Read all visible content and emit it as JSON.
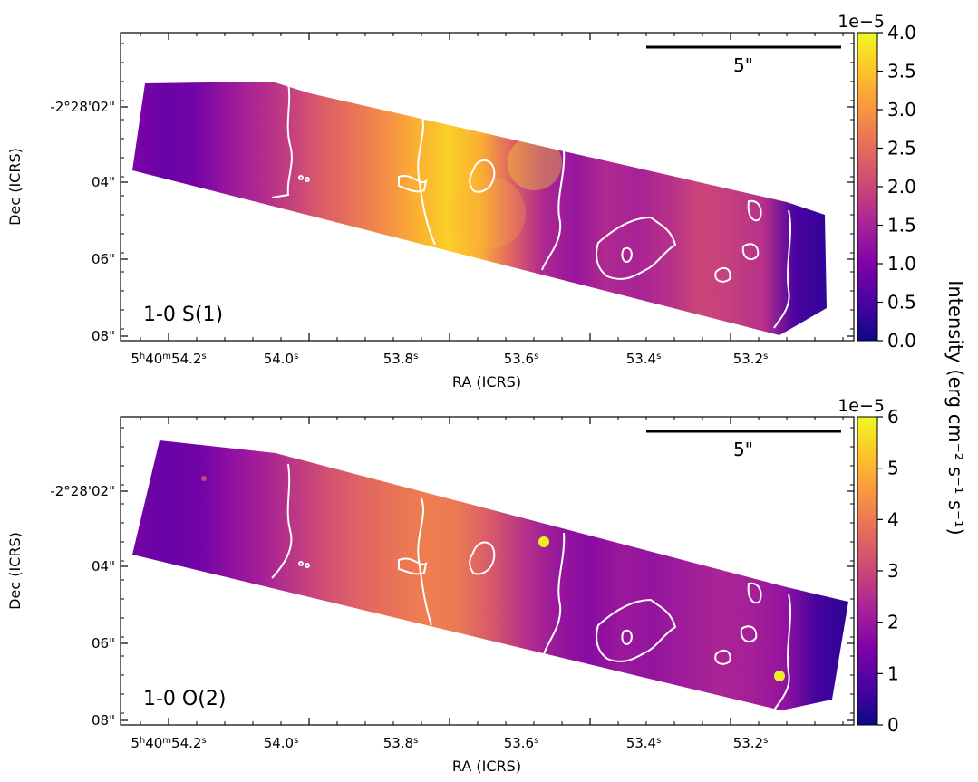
{
  "figure": {
    "colorbar_label": "Intensity (erg cm⁻² s⁻¹ s⁻¹)"
  },
  "chart_data": [
    {
      "type": "heatmap",
      "panel": "top",
      "label": "1-0 S(1)",
      "xlabel": "RA (ICRS)",
      "ylabel": "Dec (ICRS)",
      "x_ticks": [
        "5h40m54.2s",
        "54.0s",
        "53.8s",
        "53.6s",
        "53.4s",
        "53.2s"
      ],
      "y_ticks": [
        "-2°28'02\"",
        "04\"",
        "06\"",
        "08\""
      ],
      "scalebar_label": "5\"",
      "colorbar": {
        "min": 0.0,
        "max": 4.0,
        "ticks": [
          "0.0",
          "0.5",
          "1.0",
          "1.5",
          "2.0",
          "2.5",
          "3.0",
          "3.5",
          "4.0"
        ],
        "offset_text": "1e−5",
        "colormap": "plasma"
      },
      "intensity_profile": [
        1.0,
        0.8,
        0.9,
        1.3,
        1.6,
        1.9,
        2.3,
        2.6,
        2.9,
        3.3,
        3.6,
        3.3,
        2.4,
        1.6,
        1.3,
        1.6,
        1.5,
        1.7,
        2.0,
        1.9,
        1.7,
        0.5,
        0.3
      ]
    },
    {
      "type": "heatmap",
      "panel": "bottom",
      "label": "1-0 O(2)",
      "xlabel": "RA (ICRS)",
      "ylabel": "Dec (ICRS)",
      "x_ticks": [
        "5h40m54.2s",
        "54.0s",
        "53.8s",
        "53.6s",
        "53.4s",
        "53.2s"
      ],
      "y_ticks": [
        "-2°28'02\"",
        "04\"",
        "06\"",
        "08\""
      ],
      "scalebar_label": "5\"",
      "colorbar": {
        "min": 0,
        "max": 6,
        "ticks": [
          "0",
          "1",
          "2",
          "3",
          "4",
          "5",
          "6"
        ],
        "offset_text": "1e−5",
        "colormap": "plasma"
      },
      "intensity_profile": [
        1.4,
        1.2,
        1.3,
        1.8,
        2.2,
        2.7,
        3.2,
        3.6,
        3.9,
        4.1,
        4.0,
        3.4,
        2.6,
        2.0,
        1.7,
        2.0,
        1.9,
        2.1,
        2.3,
        2.2,
        1.9,
        0.7,
        0.4
      ]
    }
  ]
}
